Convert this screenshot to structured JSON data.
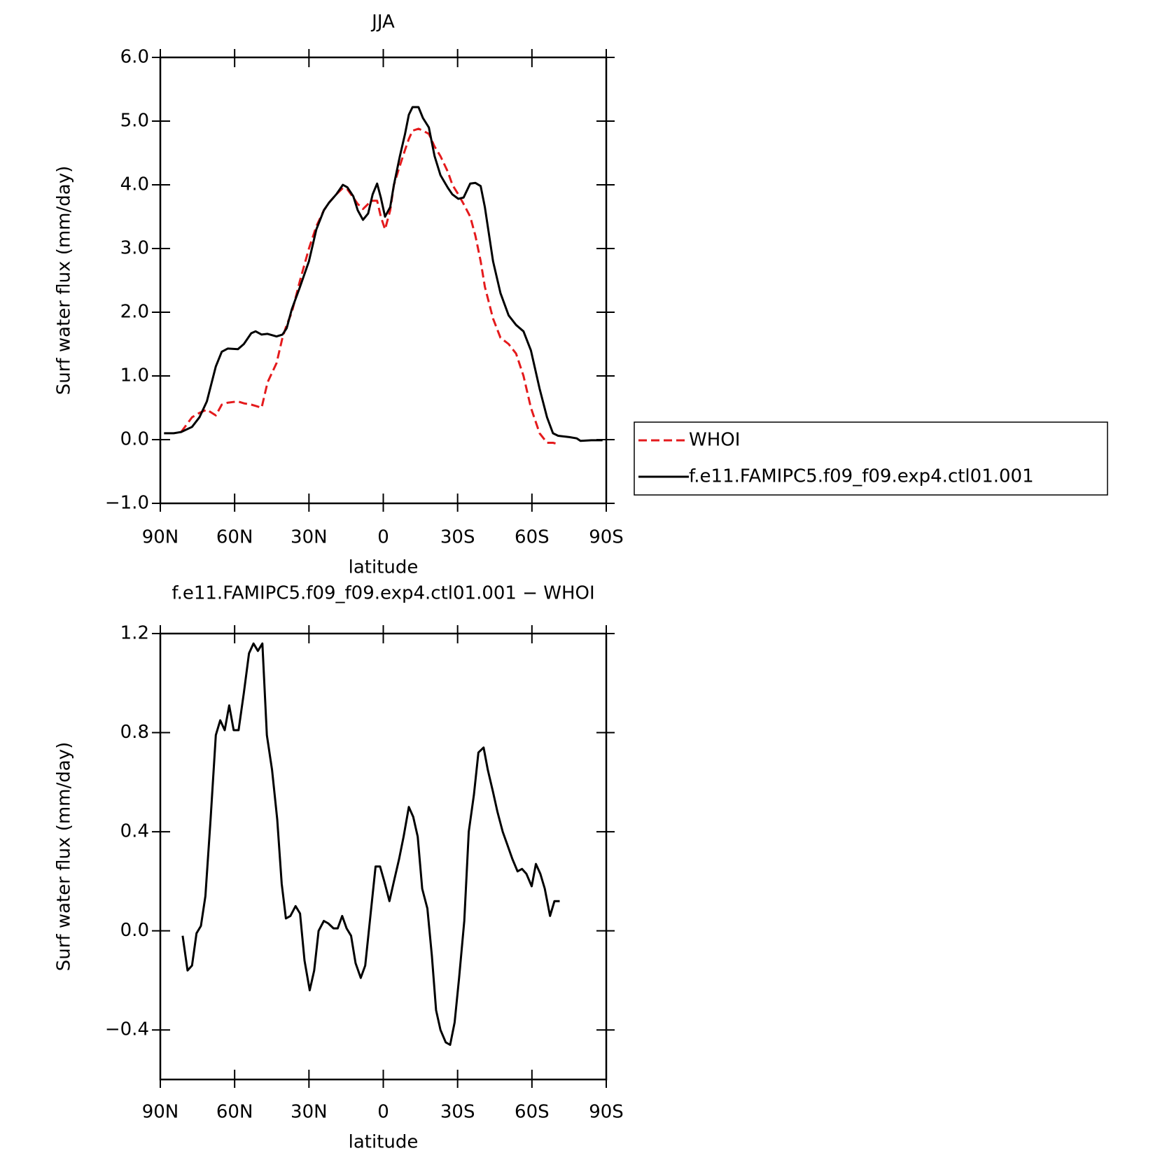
{
  "chart_data": [
    {
      "type": "line",
      "title": "JJA",
      "xlabel": "latitude",
      "ylabel": "Surf water flux (mm/day)",
      "x": [
        88.5,
        84.6,
        81.6,
        77.2,
        74.2,
        71.2,
        67.6,
        65.2,
        62.8,
        58.7,
        56.3,
        53.3,
        51.5,
        49.1,
        46.7,
        43.1,
        40.7,
        39.0,
        36.9,
        33.6,
        30.0,
        27.0,
        24.0,
        21.9,
        19.0,
        16.3,
        14.5,
        12.1,
        10.3,
        8.2,
        6.1,
        4.3,
        2.5,
        1.0,
        -0.7,
        -2.8,
        -4.3,
        -6.7,
        -8.8,
        -10.3,
        -11.8,
        -14.2,
        -16.0,
        -18.4,
        -20.7,
        -23.1,
        -26.1,
        -27.9,
        -30.3,
        -32.4,
        -35.1,
        -37.2,
        -39.3,
        -41.0,
        -44.3,
        -47.3,
        -50.6,
        -53.6,
        -56.6,
        -59.6,
        -63.1,
        -66.1,
        -68.5,
        -70.6,
        -75.1,
        -78.1,
        -79.6,
        -84.0,
        -88.5
      ],
      "series": [
        {
          "name": "WHOI",
          "color": "#e41a1c",
          "style": "dashed",
          "values": [
            null,
            null,
            0.12,
            0.35,
            0.42,
            0.47,
            0.38,
            0.55,
            0.58,
            0.6,
            0.57,
            0.55,
            0.53,
            0.5,
            0.9,
            1.2,
            1.6,
            1.8,
            2.0,
            2.5,
            3.0,
            3.35,
            3.6,
            3.72,
            3.85,
            3.95,
            3.93,
            3.8,
            3.7,
            3.62,
            3.7,
            3.75,
            3.75,
            3.5,
            3.3,
            3.6,
            4.0,
            4.3,
            4.55,
            4.72,
            4.85,
            4.88,
            4.85,
            4.8,
            4.6,
            4.45,
            4.2,
            4.0,
            3.85,
            3.7,
            3.5,
            3.2,
            2.8,
            2.4,
            1.9,
            1.6,
            1.5,
            1.35,
            1.0,
            0.5,
            0.1,
            -0.05,
            -0.05,
            -0.07,
            null,
            null,
            null,
            null,
            null
          ]
        },
        {
          "name": "f.e11.FAMIPC5.f09_f09.exp4.ctl01.001",
          "color": "#000000",
          "style": "solid",
          "values": [
            0.1,
            0.1,
            0.12,
            0.2,
            0.35,
            0.6,
            1.15,
            1.38,
            1.43,
            1.42,
            1.5,
            1.67,
            1.7,
            1.65,
            1.66,
            1.62,
            1.65,
            1.75,
            2.05,
            2.4,
            2.8,
            3.3,
            3.6,
            3.72,
            3.85,
            4.0,
            3.96,
            3.82,
            3.6,
            3.45,
            3.55,
            3.85,
            4.02,
            3.8,
            3.5,
            3.65,
            4.0,
            4.45,
            4.8,
            5.1,
            5.22,
            5.22,
            5.05,
            4.9,
            4.45,
            4.15,
            3.95,
            3.85,
            3.78,
            3.8,
            4.02,
            4.03,
            3.98,
            3.65,
            2.8,
            2.3,
            1.95,
            1.8,
            1.7,
            1.4,
            0.8,
            0.35,
            0.1,
            0.06,
            0.04,
            0.02,
            -0.02,
            -0.01,
            -0.01
          ]
        }
      ],
      "xlim": [
        90,
        -90
      ],
      "xticks": [
        {
          "value": 90,
          "label": "90N"
        },
        {
          "value": 60,
          "label": "60N"
        },
        {
          "value": 30,
          "label": "30N"
        },
        0,
        {
          "value": -30,
          "label": "30S"
        },
        {
          "value": -60,
          "label": "60S"
        },
        {
          "value": -90,
          "label": "90S"
        }
      ],
      "ylim": [
        -1,
        6
      ],
      "yticks": [
        {
          "value": -1,
          "label": "−1.0"
        },
        {
          "value": 0,
          "label": "0.0"
        },
        {
          "value": 1,
          "label": "1.0"
        },
        {
          "value": 2,
          "label": "2.0"
        },
        {
          "value": 3,
          "label": "3.0"
        },
        {
          "value": 4,
          "label": "4.0"
        },
        {
          "value": 5,
          "label": "5.0"
        },
        {
          "value": 6,
          "label": "6.0"
        }
      ],
      "legend": "right"
    },
    {
      "type": "line",
      "title": "f.e11.FAMIPC5.f09_f09.exp4.ctl01.001 − WHOI",
      "xlabel": "latitude",
      "ylabel": "Surf water flux (mm/day)",
      "x": [
        81.0,
        79.0,
        77.2,
        75.4,
        73.6,
        71.8,
        69.7,
        67.6,
        65.8,
        64.0,
        62.2,
        60.4,
        58.4,
        56.3,
        54.2,
        52.4,
        50.6,
        48.8,
        47.0,
        44.9,
        42.8,
        41.0,
        39.3,
        37.5,
        35.4,
        33.6,
        31.8,
        29.7,
        27.9,
        26.1,
        24.0,
        22.2,
        20.1,
        18.4,
        16.6,
        14.8,
        13.0,
        11.2,
        9.1,
        7.3,
        5.2,
        3.1,
        1.3,
        -0.4,
        -2.5,
        -4.3,
        -6.4,
        -8.2,
        -10.3,
        -12.1,
        -13.9,
        -15.7,
        -17.8,
        -19.6,
        -21.3,
        -23.1,
        -25.2,
        -27.0,
        -28.8,
        -30.6,
        -32.7,
        -34.5,
        -36.6,
        -38.4,
        -40.5,
        -42.2,
        -44.3,
        -46.1,
        -48.2,
        -50.0,
        -52.1,
        -54.2,
        -56.0,
        -57.8,
        -59.9,
        -61.6,
        -63.4,
        -65.2,
        -67.3,
        -69.1,
        -71.2
      ],
      "series": [
        {
          "color": "#000000",
          "style": "solid",
          "values": [
            -0.02,
            -0.16,
            -0.14,
            -0.01,
            0.02,
            0.14,
            0.45,
            0.79,
            0.85,
            0.81,
            0.91,
            0.81,
            0.81,
            0.96,
            1.12,
            1.16,
            1.13,
            1.16,
            0.79,
            0.65,
            0.45,
            0.19,
            0.05,
            0.06,
            0.1,
            0.07,
            -0.12,
            -0.24,
            -0.16,
            0.0,
            0.04,
            0.03,
            0.01,
            0.01,
            0.06,
            0.01,
            -0.02,
            -0.13,
            -0.19,
            -0.14,
            0.06,
            0.26,
            0.26,
            0.2,
            0.12,
            0.2,
            0.29,
            0.38,
            0.5,
            0.46,
            0.38,
            0.17,
            0.09,
            -0.1,
            -0.32,
            -0.4,
            -0.45,
            -0.46,
            -0.37,
            -0.19,
            0.04,
            0.4,
            0.55,
            0.72,
            0.74,
            0.65,
            0.56,
            0.48,
            0.4,
            0.35,
            0.29,
            0.24,
            0.25,
            0.23,
            0.18,
            0.27,
            0.23,
            0.17,
            0.06,
            0.12,
            0.12
          ]
        }
      ],
      "xlim": [
        90,
        -90
      ],
      "xticks": [
        {
          "value": 90,
          "label": "90N"
        },
        {
          "value": 60,
          "label": "60N"
        },
        {
          "value": 30,
          "label": "30N"
        },
        0,
        {
          "value": -30,
          "label": "30S"
        },
        {
          "value": -60,
          "label": "60S"
        },
        {
          "value": -90,
          "label": "90S"
        }
      ],
      "ylim": [
        -0.6,
        1.2
      ],
      "yticks": [
        {
          "value": -0.4,
          "label": "−0.4"
        },
        {
          "value": 0,
          "label": "0.0"
        },
        0.4,
        0.8,
        1.2
      ]
    }
  ]
}
